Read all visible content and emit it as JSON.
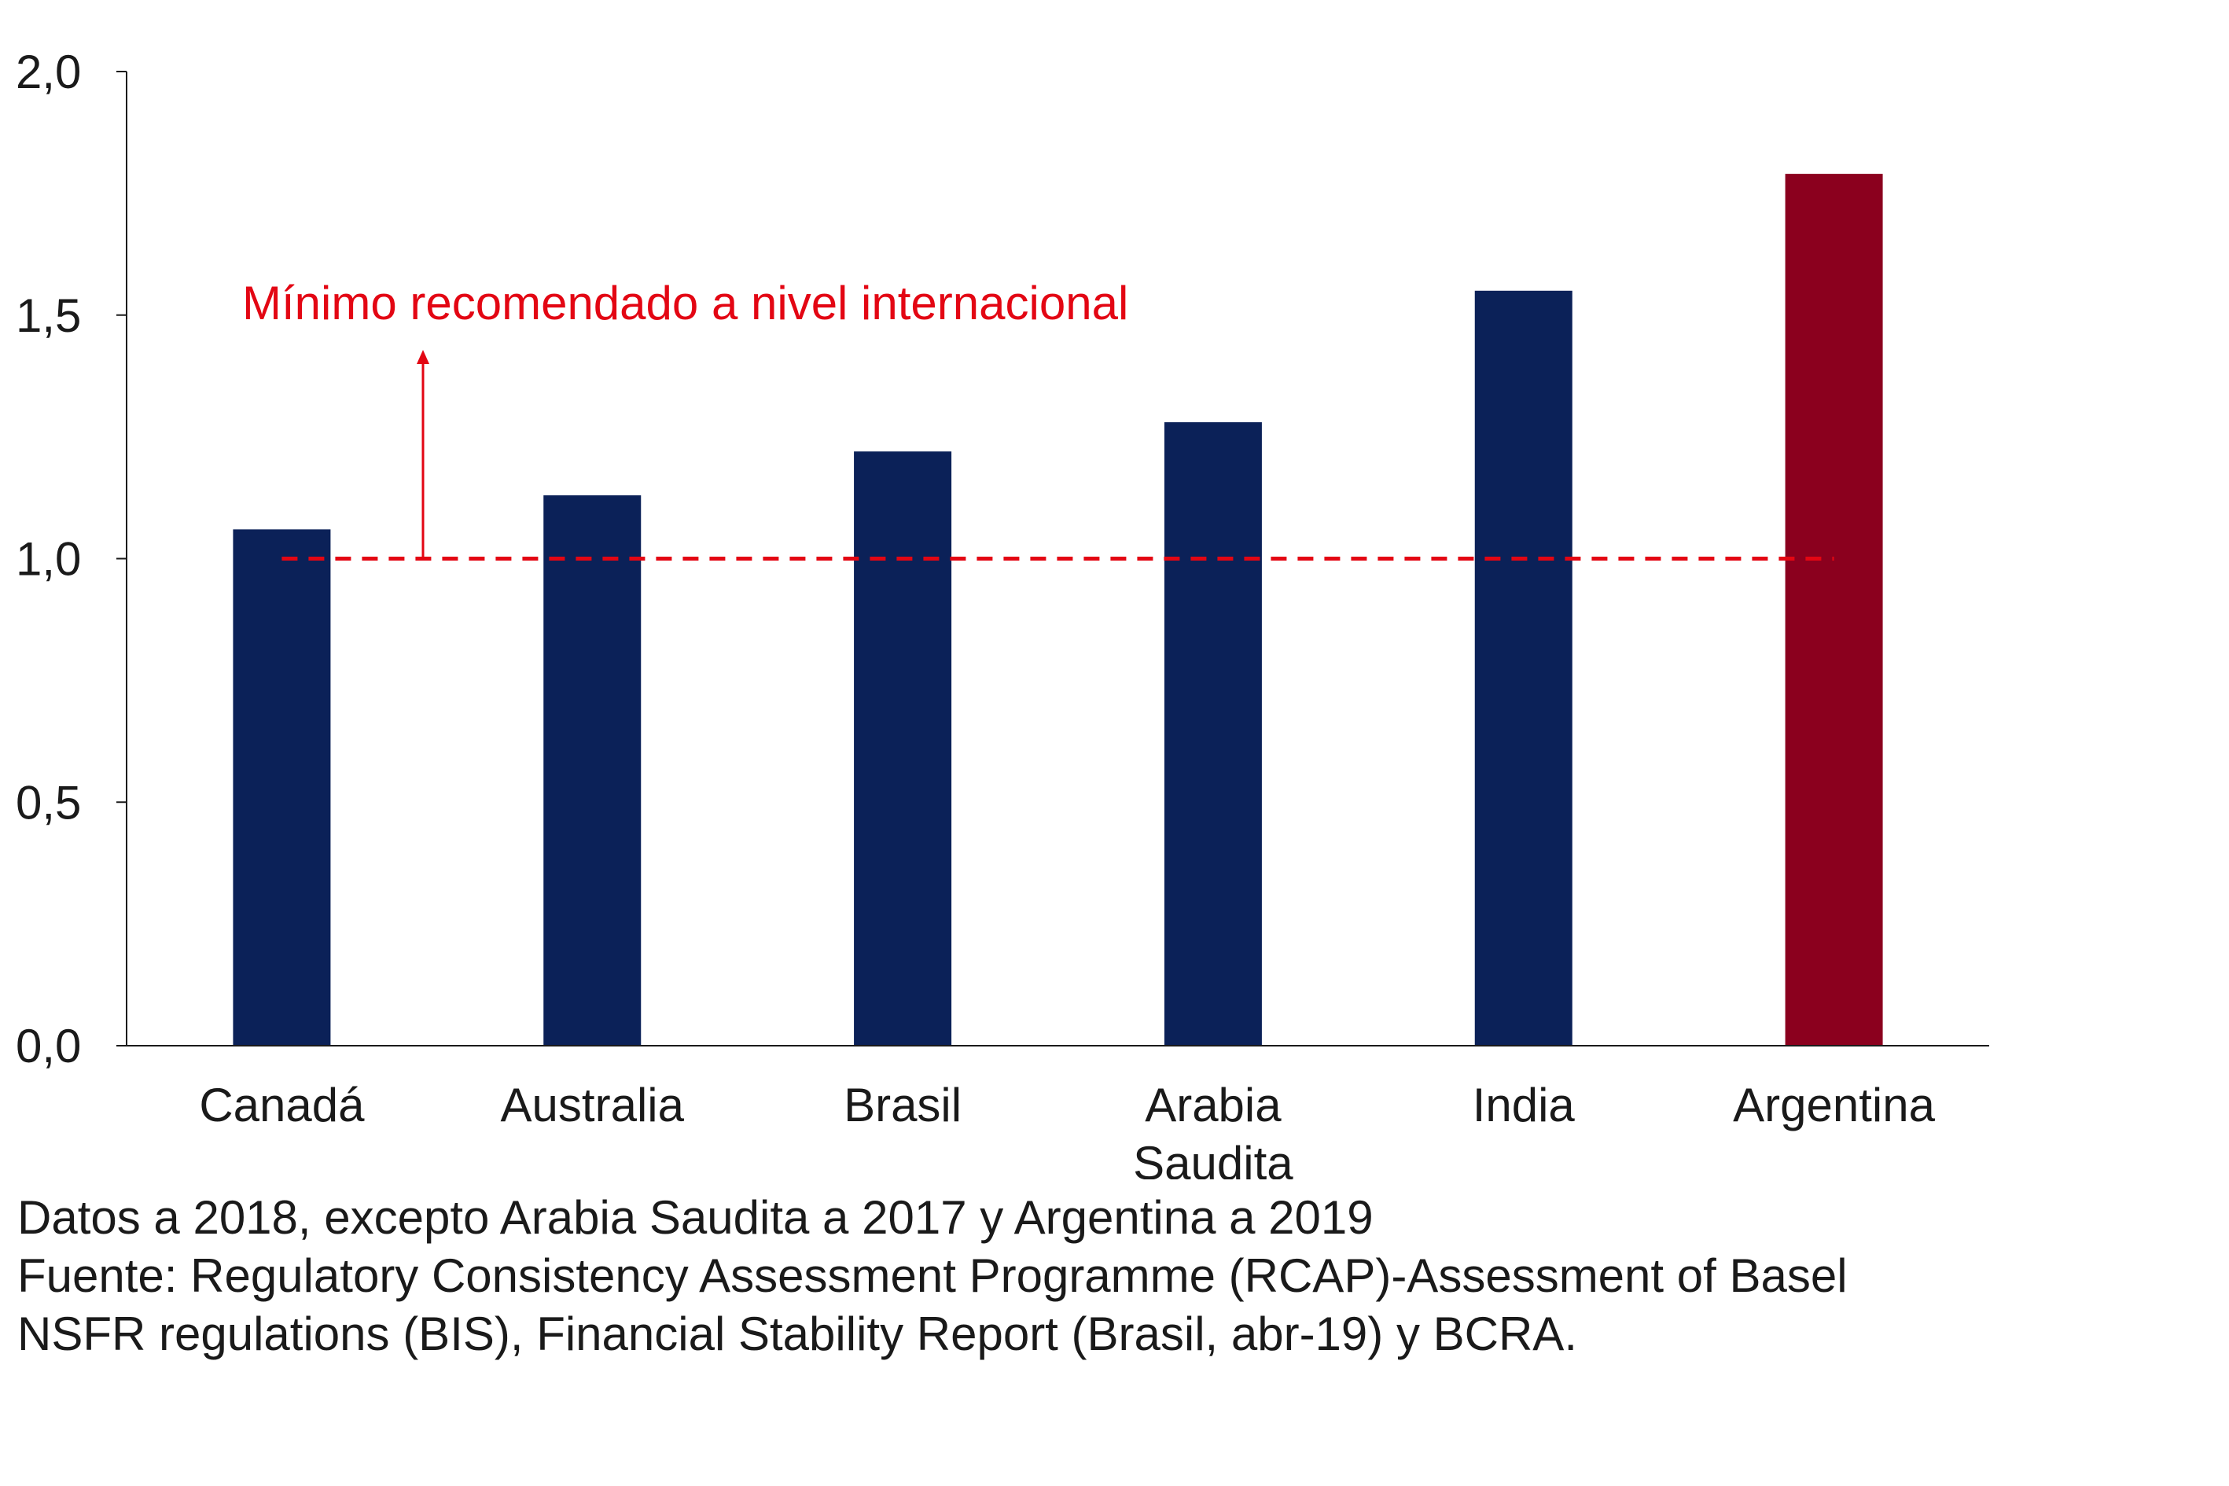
{
  "chart_data": {
    "type": "bar",
    "title": "",
    "xlabel": "",
    "ylabel": "",
    "categories": [
      "Canadá",
      "Australia",
      "Brasil",
      "Arabia Saudita",
      "India",
      "Argentina"
    ],
    "category_label_lines": [
      [
        "Canadá"
      ],
      [
        "Australia"
      ],
      [
        "Brasil"
      ],
      [
        "Arabia",
        "Saudita"
      ],
      [
        "India"
      ],
      [
        "Argentina"
      ]
    ],
    "values": [
      1.06,
      1.13,
      1.22,
      1.28,
      1.55,
      1.79
    ],
    "bar_colors": [
      "#0b2158",
      "#0b2158",
      "#0b2158",
      "#0b2158",
      "#0b2158",
      "#8b001e"
    ],
    "ylim": [
      0,
      2.0
    ],
    "yticks": [
      0,
      0.5,
      1.0,
      1.5,
      2.0
    ],
    "ytick_labels": [
      "0,0",
      "0,5",
      "1,0",
      "1,5",
      "2,0"
    ],
    "grid": false,
    "reference_line": {
      "value": 1.0,
      "style": "dashed",
      "color": "#e30613",
      "label": "Mínimo recomendado a nivel internacional"
    },
    "axis_color": "#1a1a1a"
  },
  "notes": {
    "line1": "Datos a 2018, excepto Arabia Saudita a 2017 y Argentina a 2019",
    "line2": "Fuente: Regulatory Consistency Assessment Programme (RCAP)-Assessment of Basel",
    "line3": "NSFR regulations (BIS), Financial Stability Report (Brasil, abr-19) y BCRA."
  }
}
